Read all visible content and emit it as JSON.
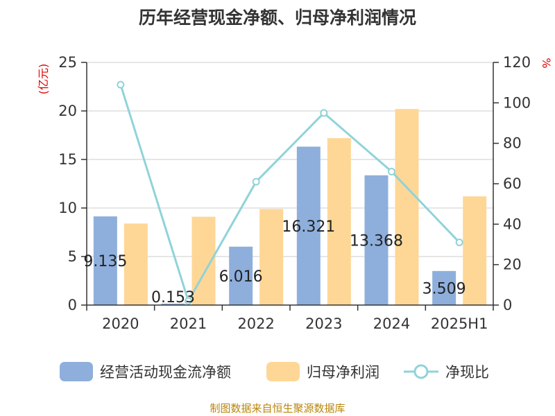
{
  "title": "历年经营现金净额、归母净利润情况",
  "source": "制图数据来自恒生聚源数据库",
  "colors": {
    "cash": "#8eafdc",
    "profit": "#fed796",
    "ratio": "#8fd3d9",
    "unit_label": "#e00000",
    "axis": "#333333",
    "grid": "#cccccc"
  },
  "chart_data": {
    "type": "bar",
    "title": "历年经营现金净额、归母净利润情况",
    "categories": [
      "2020",
      "2021",
      "2022",
      "2023",
      "2024",
      "2025H1"
    ],
    "ylabel": "(亿元)",
    "y2label": "%",
    "ylim": [
      0,
      25
    ],
    "y2lim": [
      0,
      120
    ],
    "yticks": [
      "0",
      "5",
      "10",
      "15",
      "20",
      "25"
    ],
    "y2ticks": [
      "0",
      "20",
      "40",
      "60",
      "80",
      "100",
      "120"
    ],
    "grid": true,
    "legend_position": "bottom",
    "series": [
      {
        "name": "经营活动现金流净额",
        "type": "bar",
        "axis": "left",
        "values": [
          9.135,
          0.153,
          6.016,
          16.321,
          13.368,
          3.509
        ],
        "labels": [
          "9.135",
          "0.153",
          "6.016",
          "16.321",
          "13.368",
          "3.509"
        ]
      },
      {
        "name": "归母净利润",
        "type": "bar",
        "axis": "left",
        "values": [
          8.4,
          9.1,
          9.9,
          17.2,
          20.2,
          11.2
        ]
      },
      {
        "name": "净现比",
        "type": "line",
        "axis": "right",
        "values": [
          109,
          2,
          61,
          95,
          66,
          31
        ]
      }
    ]
  }
}
